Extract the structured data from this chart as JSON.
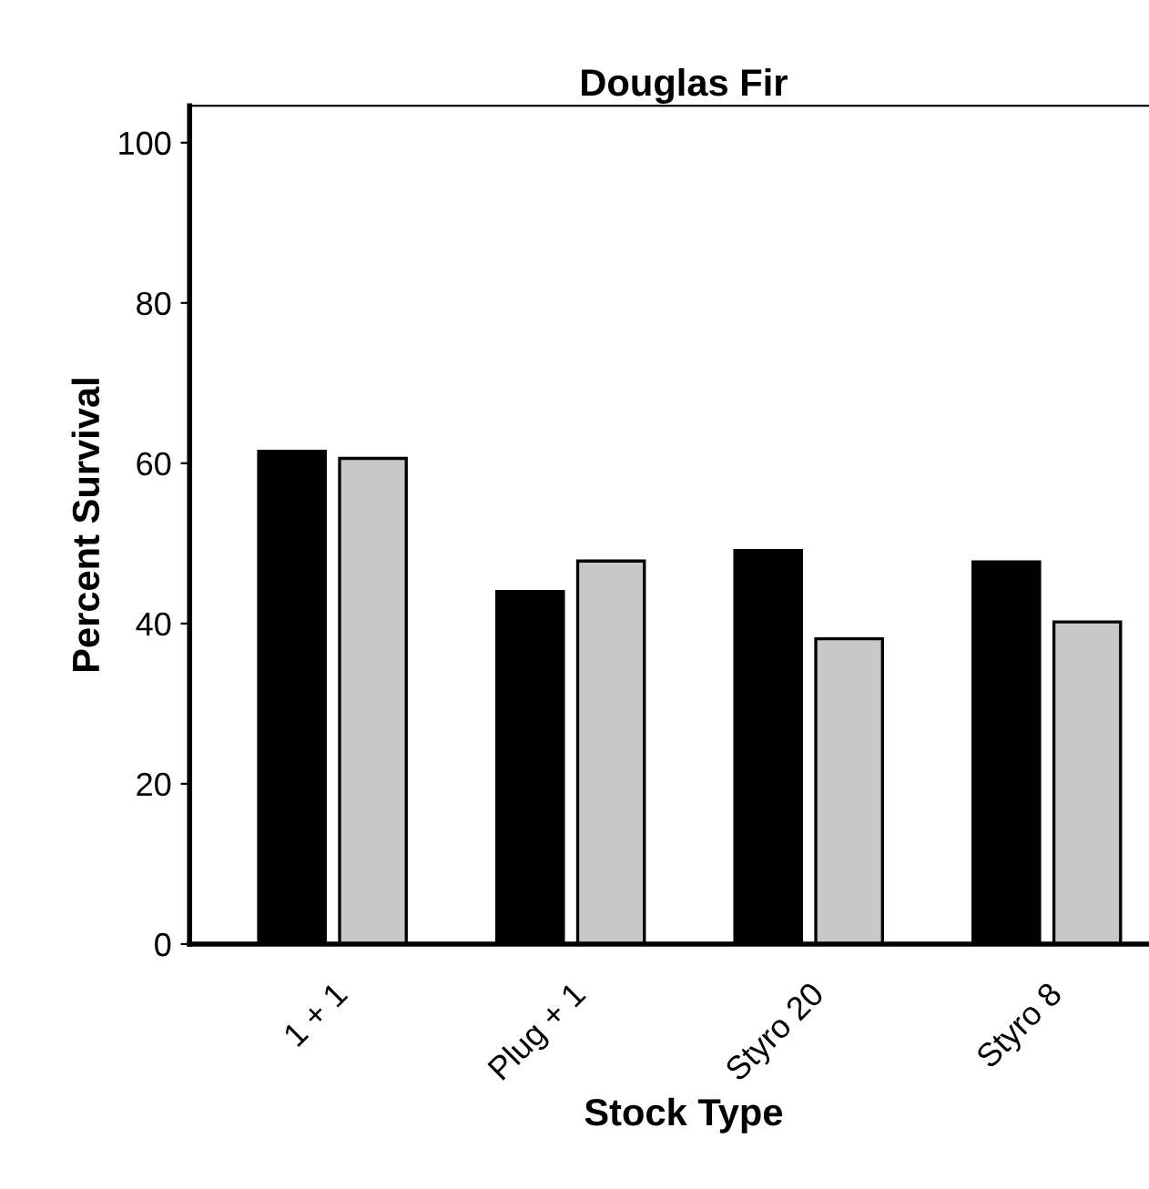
{
  "chart_data": {
    "type": "bar",
    "title": "Douglas Fir",
    "xlabel": "Stock Type",
    "ylabel": "Percent Survival",
    "categories": [
      "1 + 1",
      "Plug + 1",
      "Styro 20",
      "Styro 8"
    ],
    "series": [
      {
        "color": "#000000",
        "values": [
          61.5,
          44.0,
          49.1,
          47.7
        ]
      },
      {
        "color": "#c8c8c8",
        "values": [
          60.6,
          47.8,
          38.1,
          40.2
        ]
      }
    ],
    "ylim": [
      0,
      104.6
    ],
    "yticks": [
      0,
      20,
      40,
      60,
      80,
      100
    ],
    "grid": false,
    "legend": false
  }
}
